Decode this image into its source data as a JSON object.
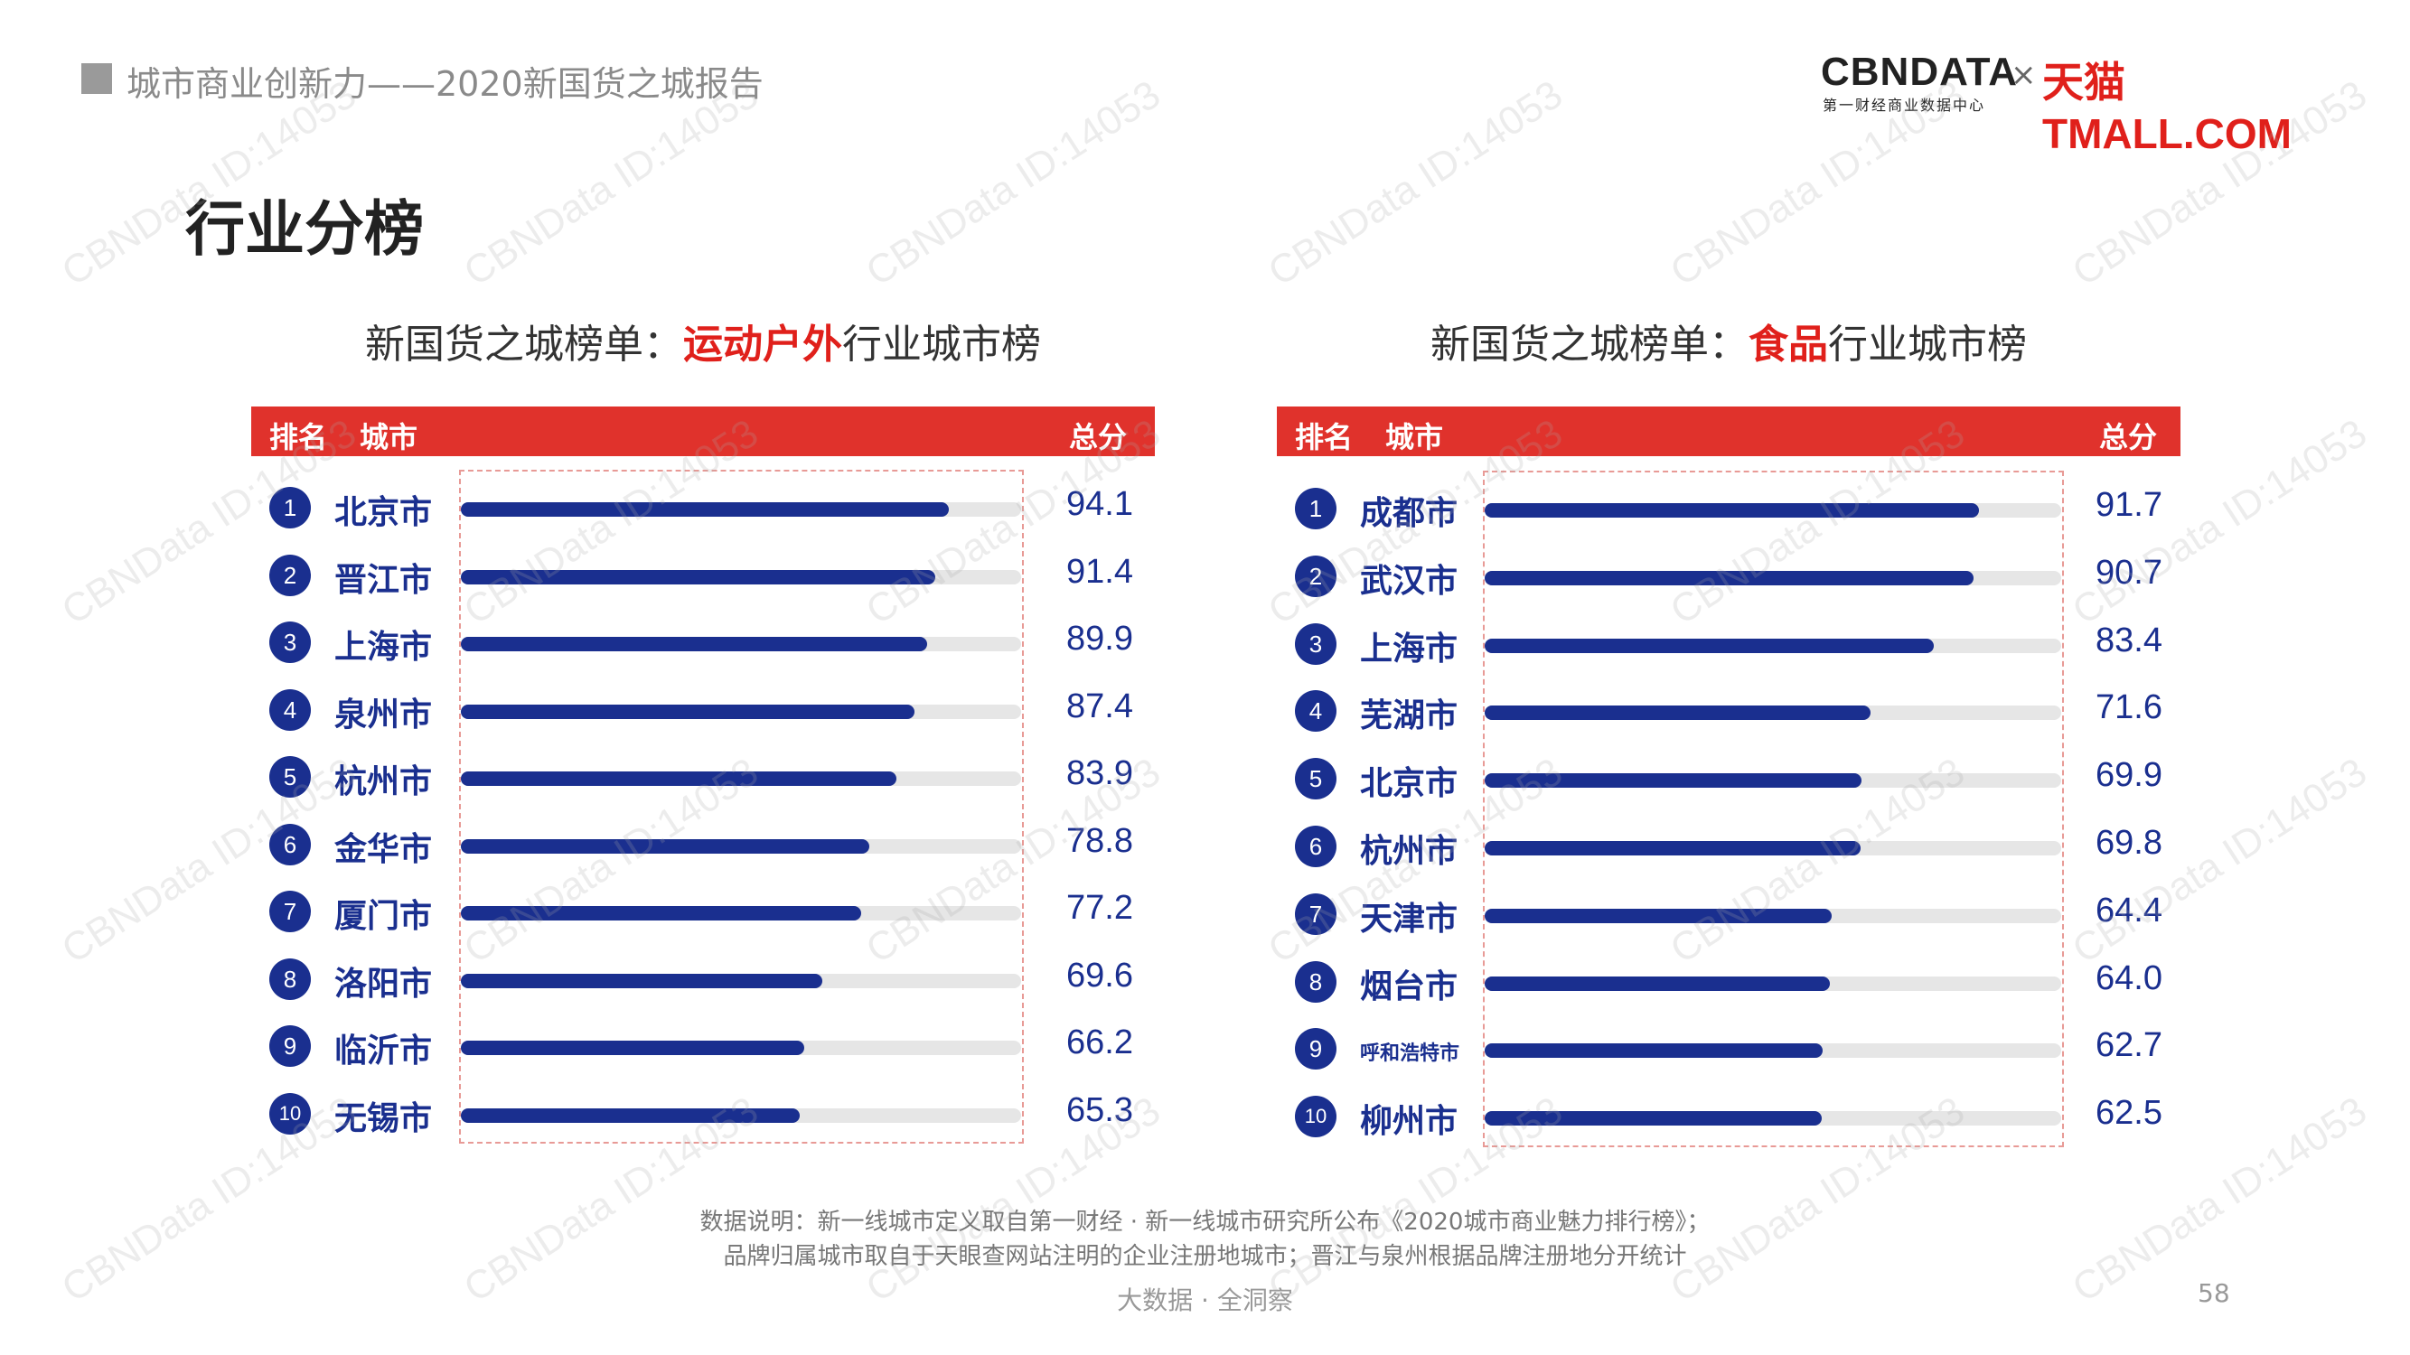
{
  "header": {
    "report_title": "城市商业创新力——2020新国货之城报告",
    "page_title": "行业分榜"
  },
  "logo": {
    "cbndata": "CBNDATA",
    "cbndata_sub": "第一财经商业数据中心",
    "separator": "×",
    "tmall": "天猫TMALL.COM"
  },
  "watermark": "CBNData ID:14053",
  "colors": {
    "accent_red": "#e0322c",
    "bar_blue": "#1a2f8f",
    "track_gray": "#e6e6e6"
  },
  "chart_data": [
    {
      "type": "bar",
      "title_prefix": "新国货之城榜单：",
      "title_highlight": "运动户外",
      "title_suffix": "行业城市榜",
      "header_rank": "排名",
      "header_city": "城市",
      "header_score": "总分",
      "ranks": [
        "1",
        "2",
        "3",
        "4",
        "5",
        "6",
        "7",
        "8",
        "9",
        "10"
      ],
      "categories": [
        "北京市",
        "晋江市",
        "上海市",
        "泉州市",
        "杭州市",
        "金华市",
        "厦门市",
        "洛阳市",
        "临沂市",
        "无锡市"
      ],
      "values": [
        94.1,
        91.4,
        89.9,
        87.4,
        83.9,
        78.8,
        77.2,
        69.6,
        66.2,
        65.3
      ],
      "value_labels": [
        "94.1",
        "91.4",
        "89.9",
        "87.4",
        "83.9",
        "78.8",
        "77.2",
        "69.6",
        "66.2",
        "65.3"
      ],
      "xlim": [
        0,
        108
      ]
    },
    {
      "type": "bar",
      "title_prefix": "新国货之城榜单：",
      "title_highlight": "食品",
      "title_suffix": "行业城市榜",
      "header_rank": "排名",
      "header_city": "城市",
      "header_score": "总分",
      "ranks": [
        "1",
        "2",
        "3",
        "4",
        "5",
        "6",
        "7",
        "8",
        "9",
        "10"
      ],
      "categories": [
        "成都市",
        "武汉市",
        "上海市",
        "芜湖市",
        "北京市",
        "杭州市",
        "天津市",
        "烟台市",
        "呼和浩特市",
        "柳州市"
      ],
      "values": [
        91.7,
        90.7,
        83.4,
        71.6,
        69.9,
        69.8,
        64.4,
        64.0,
        62.7,
        62.5
      ],
      "value_labels": [
        "91.7",
        "90.7",
        "83.4",
        "71.6",
        "69.9",
        "69.8",
        "64.4",
        "64.0",
        "62.7",
        "62.5"
      ],
      "xlim": [
        0,
        107
      ]
    }
  ],
  "notes": {
    "line1": "数据说明：新一线城市定义取自第一财经 · 新一线城市研究所公布《2020城市商业魅力排行榜》；",
    "line2": "品牌归属城市取自于天眼查网站注明的企业注册地城市；晋江与泉州根据品牌注册地分开统计"
  },
  "footer": {
    "tagline": "大数据 · 全洞察",
    "page_number": "58"
  }
}
